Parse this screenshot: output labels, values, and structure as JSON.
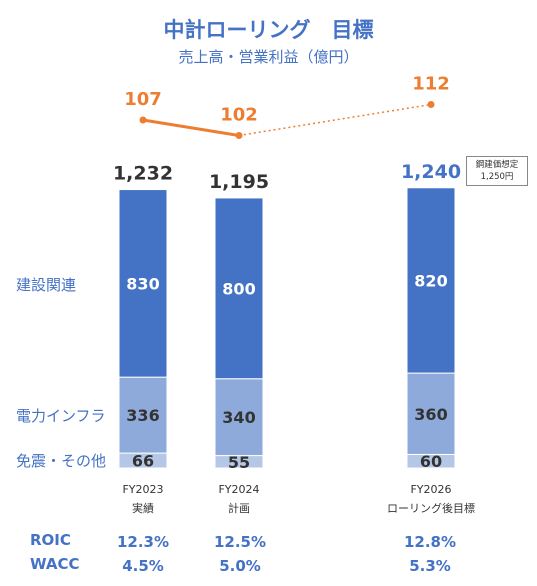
{
  "title": "中計ローリング　目標",
  "subtitle": "売上高・営業利益（億円）",
  "segment_labels": {
    "construction": "建設関連",
    "power": "電力インフラ",
    "other": "免震・その他"
  },
  "note": {
    "line1": "鋼建価想定",
    "line2": "1,250円"
  },
  "metrics": {
    "roic_label": "ROIC",
    "wacc_label": "WACC",
    "roic": [
      "12.3%",
      "12.5%",
      "12.8%"
    ],
    "wacc": [
      "4.5%",
      "5.0%",
      "5.3%"
    ]
  },
  "colors": {
    "construction": "#4472c4",
    "power": "#8eaadb",
    "other": "#b4c7e7",
    "profit_line": "#ed7d31",
    "total_2026": "#4472c4",
    "total_default": "#333333"
  },
  "chart_data": {
    "type": "bar",
    "stacked": true,
    "categories": [
      [
        "FY2023",
        "実績"
      ],
      [
        "FY2024",
        "計画"
      ],
      [
        "FY2026",
        "ローリング後目標"
      ]
    ],
    "series": [
      {
        "name": "免震・その他",
        "values": [
          66,
          55,
          60
        ]
      },
      {
        "name": "電力インフラ",
        "values": [
          336,
          340,
          360
        ]
      },
      {
        "name": "建設関連",
        "values": [
          830,
          800,
          820
        ]
      }
    ],
    "totals": [
      "1,232",
      "1,195",
      "1,240"
    ],
    "profit": {
      "values": [
        107,
        102,
        112
      ],
      "labels": [
        "107",
        "102",
        "112"
      ],
      "line_styles": [
        "solid",
        "dotted"
      ]
    },
    "ylim": [
      0,
      1240
    ]
  }
}
